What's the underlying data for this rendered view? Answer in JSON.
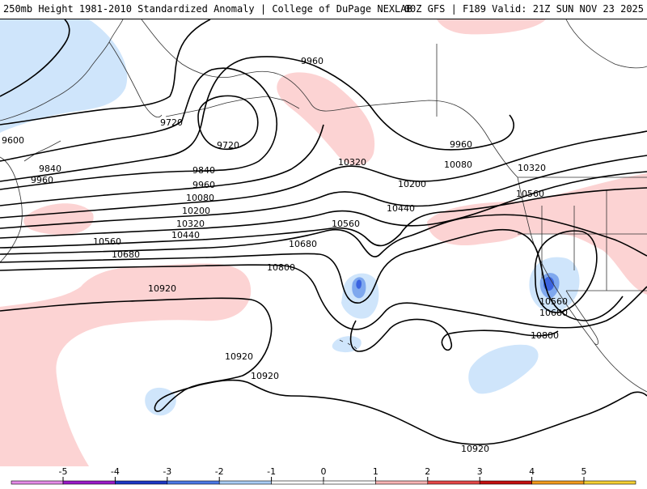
{
  "header": {
    "left": "250mb Height 1981-2010 Standardized Anomaly | College of DuPage NEXLAB",
    "right": "00Z GFS | F189 Valid: 21Z SUN NOV 23 2025"
  },
  "colors": {
    "background": "#ffffff",
    "contour": "#000000",
    "coast": "#333333",
    "anom_pos_1": "#fcd3d3",
    "anom_neg_1": "#cfe5fb",
    "anom_neg_2": "#7fa8ee",
    "anom_neg_3": "#3b63e0"
  },
  "contour_labels": {
    "l_9960_a": "9960",
    "l_9720_a": "9720",
    "l_9720_b": "9720",
    "l_9600": "9600",
    "l_9840_a": "9840",
    "l_9960_b": "9960",
    "l_9840_b": "9840",
    "l_9960_c": "9960",
    "l_10080_a": "10080",
    "l_10200_a": "10200",
    "l_10320_a": "10320",
    "l_10440_a": "10440",
    "l_10560_a": "10560",
    "l_10680_a": "10680",
    "l_10320_b": "10320",
    "l_10200_b": "10200",
    "l_10440_b": "10440",
    "l_10560_b": "10560",
    "l_10680_b": "10680",
    "l_10800_a": "10800",
    "l_10920_a": "10920",
    "l_9960_d": "9960",
    "l_10080_b": "10080",
    "l_10320_c": "10320",
    "l_10560_c": "10560",
    "l_10560_d": "10560",
    "l_10680_c": "10680",
    "l_10800_b": "10800",
    "l_10920_b": "10920",
    "l_10920_c": "10920",
    "l_10920_d": "10920"
  },
  "colorbar": {
    "ticks": [
      "-5",
      "-4",
      "-3",
      "-2",
      "-1",
      "0",
      "1",
      "2",
      "3",
      "4",
      "5"
    ],
    "colors": [
      "#e58ce8",
      "#9b19c9",
      "#1c37c6",
      "#4b78e6",
      "#a9ccf4",
      "#ffffff",
      "#ffffff",
      "#f7b3b3",
      "#e44747",
      "#c40f0f",
      "#f39a1c",
      "#f5d033"
    ]
  }
}
